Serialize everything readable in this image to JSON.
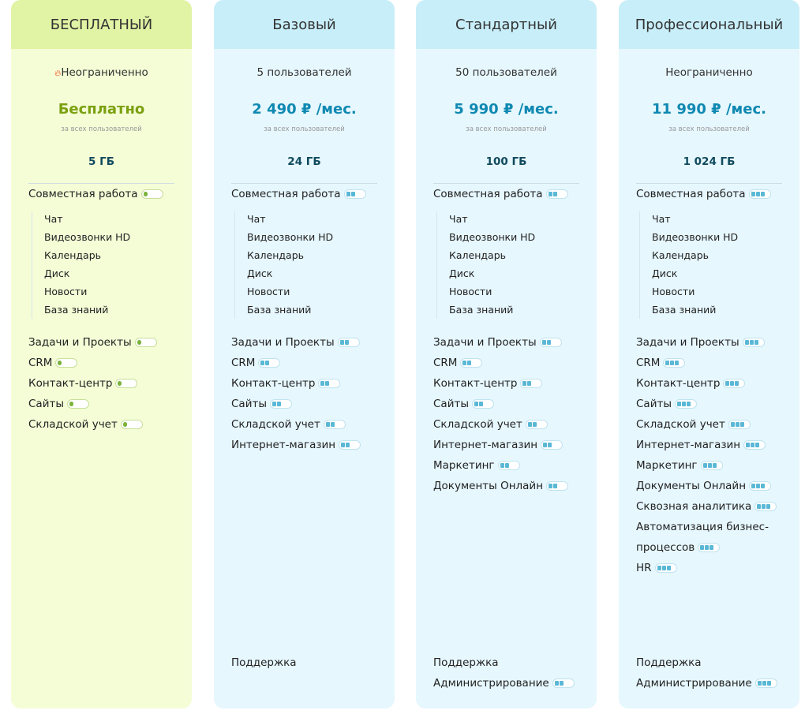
{
  "sub_features": [
    "Чат",
    "Видеозвонки HD",
    "Календарь",
    "Диск",
    "Новости",
    "База знаний"
  ],
  "colors": {
    "free_header": "#e1f3a4",
    "free_body": "#f4fdd6",
    "paid_header": "#c8eef9",
    "paid_body": "#e6f7fe",
    "price_paid": "#0f89b2",
    "price_free": "#7ba00f"
  },
  "plans": [
    {
      "name": "БЕСПЛАТНЫЙ",
      "users": "Неограниченно",
      "users_icon": "fire-icon",
      "price": "Бесплатно",
      "note": "за всех пользователей",
      "storage": "5 ГБ",
      "features": [
        {
          "label": "Совместная работа",
          "level": 1
        },
        {
          "label": "Задачи и Проекты",
          "level": 1
        },
        {
          "label": "CRM",
          "level": 1
        },
        {
          "label": "Контакт-центр",
          "level": 1
        },
        {
          "label": "Сайты",
          "level": 1
        },
        {
          "label": "Складской учет",
          "level": 1
        }
      ],
      "bottom": []
    },
    {
      "name": "Базовый",
      "users": "5 пользователей",
      "price": "2 490 ₽ /мес.",
      "note": "за всех пользователей",
      "storage": "24 ГБ",
      "features": [
        {
          "label": "Совместная работа",
          "level": 2
        },
        {
          "label": "Задачи и Проекты",
          "level": 2
        },
        {
          "label": "CRM",
          "level": 2
        },
        {
          "label": "Контакт-центр",
          "level": 2
        },
        {
          "label": "Сайты",
          "level": 2
        },
        {
          "label": "Складской учет",
          "level": 2
        },
        {
          "label": "Интернет-магазин",
          "level": 2
        }
      ],
      "bottom": [
        {
          "label": "Поддержка",
          "level": 0
        }
      ]
    },
    {
      "name": "Стандартный",
      "users": "50 пользователей",
      "price": "5 990 ₽ /мес.",
      "note": "за всех пользователей",
      "storage": "100 ГБ",
      "features": [
        {
          "label": "Совместная работа",
          "level": 2
        },
        {
          "label": "Задачи и Проекты",
          "level": 2
        },
        {
          "label": "CRM",
          "level": 2
        },
        {
          "label": "Контакт-центр",
          "level": 2
        },
        {
          "label": "Сайты",
          "level": 2
        },
        {
          "label": "Складской учет",
          "level": 2
        },
        {
          "label": "Интернет-магазин",
          "level": 2
        },
        {
          "label": "Маркетинг",
          "level": 2
        },
        {
          "label": "Документы Онлайн",
          "level": 2
        }
      ],
      "bottom": [
        {
          "label": "Поддержка",
          "level": 0
        },
        {
          "label": "Администрирование",
          "level": 2
        }
      ]
    },
    {
      "name": "Профессиональный",
      "users": "Неограниченно",
      "price": "11 990 ₽ /мес.",
      "note": "за всех пользователей",
      "storage": "1 024 ГБ",
      "features": [
        {
          "label": "Совместная работа",
          "level": 3
        },
        {
          "label": "Задачи и Проекты",
          "level": 3
        },
        {
          "label": "CRM",
          "level": 3
        },
        {
          "label": "Контакт-центр",
          "level": 3
        },
        {
          "label": "Сайты",
          "level": 3
        },
        {
          "label": "Складской учет",
          "level": 3
        },
        {
          "label": "Интернет-магазин",
          "level": 3
        },
        {
          "label": "Маркетинг",
          "level": 3
        },
        {
          "label": "Документы Онлайн",
          "level": 3
        },
        {
          "label": "Сквозная аналитика",
          "level": 3
        },
        {
          "label": "Автоматизация бизнес-",
          "level": 0
        },
        {
          "label": "процессов",
          "level": 3
        },
        {
          "label": "HR",
          "level": 3
        }
      ],
      "bottom": [
        {
          "label": "Поддержка",
          "level": 0
        },
        {
          "label": "Администрирование",
          "level": 3
        }
      ]
    }
  ]
}
